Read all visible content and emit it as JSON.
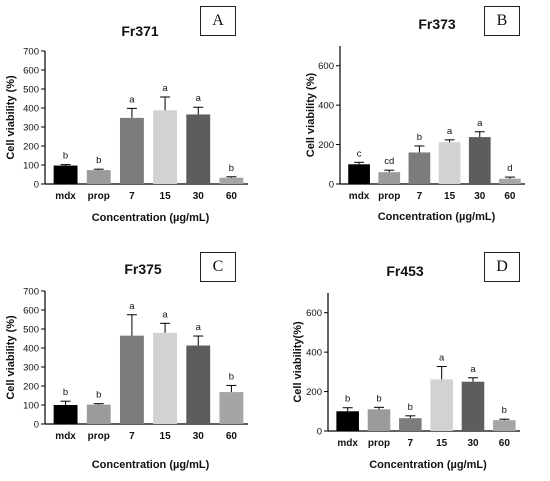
{
  "chart_data": [
    {
      "type": "bar",
      "panel_label": "A",
      "title": "Fr371",
      "ylabel": "Cell viability (%)",
      "xlabel": "Concentration (µg/mL)",
      "ylim": [
        0,
        700
      ],
      "yticks": [
        0,
        100,
        200,
        300,
        400,
        500,
        600,
        700
      ],
      "categories": [
        "mdx",
        "prop",
        "7",
        "15",
        "30",
        "60"
      ],
      "values": [
        97,
        73,
        348,
        388,
        366,
        33
      ],
      "errors": [
        5,
        5,
        50,
        70,
        38,
        5
      ],
      "letters": [
        "b",
        "b",
        "a",
        "a",
        "a",
        "b"
      ],
      "colors": [
        "#000000",
        "#9b9b9b",
        "#7c7c7c",
        "#d2d2d2",
        "#5d5d5d",
        "#a5a5a5"
      ]
    },
    {
      "type": "bar",
      "panel_label": "B",
      "title": "Fr373",
      "ylabel": "Cell viability (%)",
      "xlabel": "Concentration (µg/mL)",
      "ylim": [
        0,
        700
      ],
      "yticks": [
        0,
        200,
        400,
        600
      ],
      "categories": [
        "mdx",
        "prop",
        "7",
        "15",
        "30",
        "60"
      ],
      "values": [
        100,
        60,
        160,
        212,
        238,
        27
      ],
      "errors": [
        10,
        10,
        33,
        12,
        27,
        8
      ],
      "letters": [
        "c",
        "cd",
        "b",
        "a",
        "a",
        "d"
      ],
      "colors": [
        "#000000",
        "#9b9b9b",
        "#7c7c7c",
        "#d2d2d2",
        "#5d5d5d",
        "#a5a5a5"
      ]
    },
    {
      "type": "bar",
      "panel_label": "C",
      "title": "Fr375",
      "ylabel": "Cell viability (%)",
      "xlabel": "Concentration (µg/mL)",
      "ylim": [
        0,
        700
      ],
      "yticks": [
        0,
        100,
        200,
        300,
        400,
        500,
        600,
        700
      ],
      "categories": [
        "mdx",
        "prop",
        "7",
        "15",
        "30",
        "60"
      ],
      "values": [
        100,
        102,
        465,
        480,
        413,
        168
      ],
      "errors": [
        20,
        5,
        110,
        50,
        50,
        35
      ],
      "letters": [
        "b",
        "b",
        "a",
        "a",
        "a",
        "b"
      ],
      "colors": [
        "#000000",
        "#9b9b9b",
        "#7c7c7c",
        "#d2d2d2",
        "#5d5d5d",
        "#a5a5a5"
      ]
    },
    {
      "type": "bar",
      "panel_label": "D",
      "title": "Fr453",
      "ylabel": "Cell viability(%)",
      "xlabel": "Concentration (µg/mL)",
      "ylim": [
        0,
        700
      ],
      "yticks": [
        0,
        200,
        400,
        600
      ],
      "categories": [
        "mdx",
        "prop",
        "7",
        "15",
        "30",
        "60"
      ],
      "values": [
        100,
        110,
        65,
        262,
        250,
        55
      ],
      "errors": [
        18,
        10,
        12,
        65,
        20,
        5
      ],
      "letters": [
        "b",
        "b",
        "b",
        "a",
        "a",
        "b"
      ],
      "colors": [
        "#000000",
        "#9b9b9b",
        "#7c7c7c",
        "#d2d2d2",
        "#5d5d5d",
        "#a5a5a5"
      ]
    }
  ]
}
